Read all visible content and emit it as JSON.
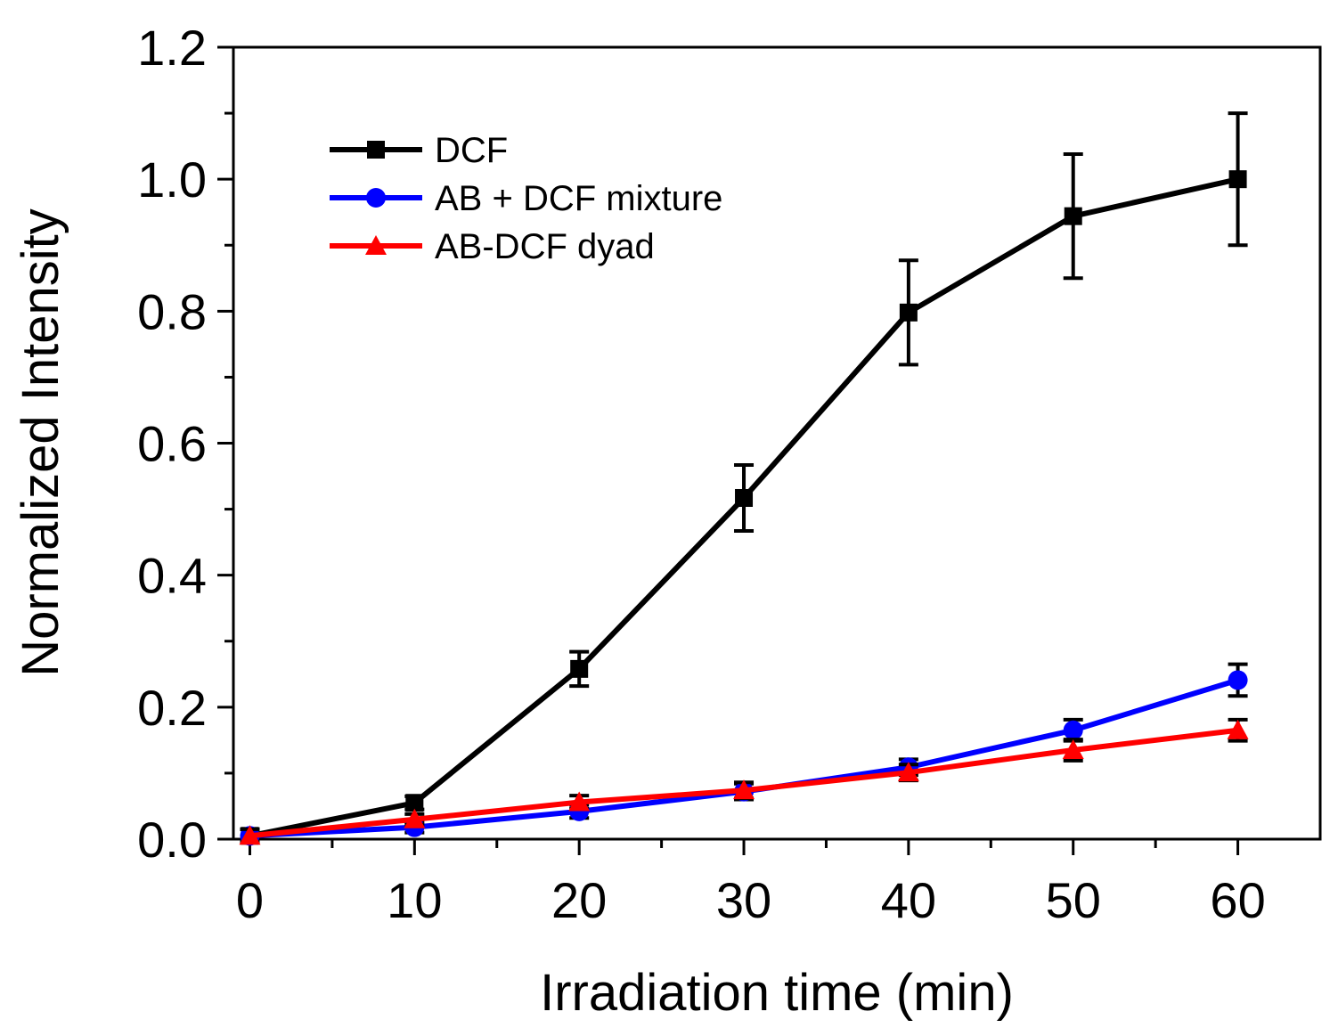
{
  "chart_data": {
    "type": "line",
    "xlabel": "Irradiation time (min)",
    "ylabel": "Normalized Intensity",
    "xlim": [
      -1,
      65
    ],
    "ylim": [
      0.0,
      1.2
    ],
    "x_ticks": [
      "0",
      "10",
      "20",
      "30",
      "40",
      "50",
      "60"
    ],
    "y_ticks": [
      "0.0",
      "0.2",
      "0.4",
      "0.6",
      "0.8",
      "1.0",
      "1.2"
    ],
    "legend_position": "top-left",
    "grid": false,
    "x": [
      0,
      10,
      20,
      30,
      40,
      50,
      60
    ],
    "series": [
      {
        "name": "DCF",
        "color": "#000000",
        "marker": "square",
        "values": [
          0.005,
          0.055,
          0.258,
          0.517,
          0.798,
          0.944,
          1.0
        ],
        "errors": [
          0.01,
          0.01,
          0.026,
          0.05,
          0.079,
          0.094,
          0.1
        ]
      },
      {
        "name": "AB + DCF mixture",
        "color": "#0000ff",
        "marker": "circle",
        "values": [
          0.005,
          0.018,
          0.042,
          0.072,
          0.109,
          0.165,
          0.241
        ],
        "errors": [
          0.01,
          0.008,
          0.01,
          0.012,
          0.012,
          0.016,
          0.024
        ]
      },
      {
        "name": "AB-DCF dyad",
        "color": "#ff0000",
        "marker": "triangle",
        "values": [
          0.005,
          0.03,
          0.056,
          0.074,
          0.101,
          0.135,
          0.165
        ],
        "errors": [
          0.01,
          0.008,
          0.01,
          0.012,
          0.012,
          0.016,
          0.016
        ]
      }
    ]
  }
}
